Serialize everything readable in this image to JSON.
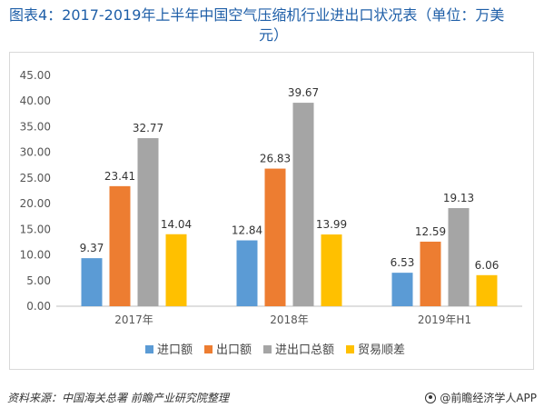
{
  "title_line1": "图表4：2017-2019年上半年中国空气压缩机行业进出口状况表（单位：万美",
  "title_line2": "元）",
  "footer_source": "资料来源：中国海关总署  前瞻产业研究院整理",
  "footer_brand": "@前瞻经济学人APP",
  "colors": {
    "import": "#5b9bd5",
    "export": "#ed7d31",
    "total": "#a5a5a5",
    "balance": "#ffc000",
    "title": "#1f5fa8"
  },
  "chart_data": {
    "type": "bar",
    "title": "",
    "xlabel": "",
    "ylabel": "",
    "categories": [
      "2017年",
      "2018年",
      "2019年H1"
    ],
    "series": [
      {
        "name": "进口额",
        "values": [
          9.37,
          12.84,
          6.53
        ]
      },
      {
        "name": "出口额",
        "values": [
          23.41,
          26.83,
          12.59
        ]
      },
      {
        "name": "进出口总额",
        "values": [
          32.77,
          39.67,
          19.13
        ]
      },
      {
        "name": "贸易顺差",
        "values": [
          14.04,
          13.99,
          6.06
        ]
      }
    ],
    "ylim": [
      0,
      45
    ],
    "yticks": [
      "0.00",
      "5.00",
      "10.00",
      "15.00",
      "20.00",
      "25.00",
      "30.00",
      "35.00",
      "40.00",
      "45.00"
    ],
    "grid": false,
    "legend": "bottom"
  }
}
